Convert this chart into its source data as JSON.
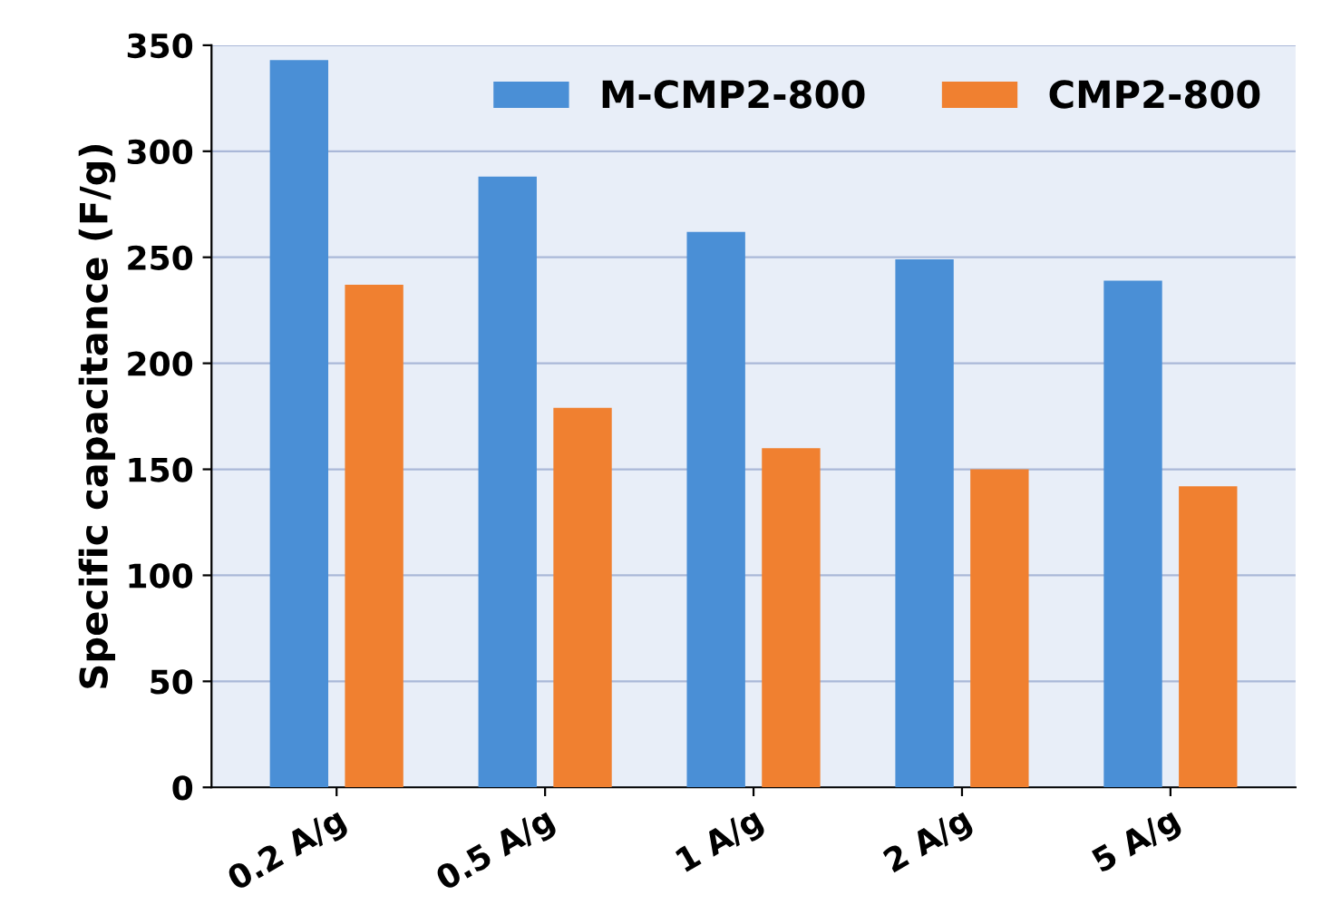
{
  "chart_data": {
    "type": "bar",
    "ylabel": "Specific capacitance (F/g)",
    "categories": [
      "0.2 A/g",
      "0.5 A/g",
      "1 A/g",
      "2 A/g",
      "5 A/g"
    ],
    "series": [
      {
        "name": "M-CMP2-800",
        "color": "#4a8fd6",
        "values": [
          343,
          288,
          262,
          249,
          239
        ]
      },
      {
        "name": "CMP2-800",
        "color": "#f08030",
        "values": [
          237,
          179,
          160,
          150,
          142
        ]
      }
    ],
    "ylim": [
      0,
      350
    ],
    "yticks": [
      0,
      50,
      100,
      150,
      200,
      250,
      300,
      350
    ],
    "grid": "y",
    "legend": "top right"
  }
}
